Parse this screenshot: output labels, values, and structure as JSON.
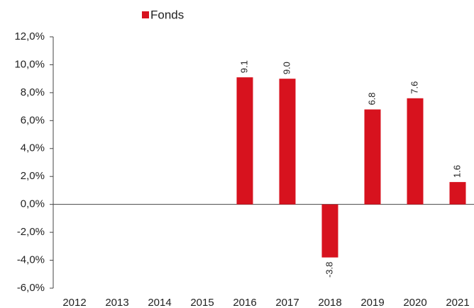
{
  "chart_data": {
    "type": "bar",
    "categories": [
      "2012",
      "2013",
      "2014",
      "2015",
      "2016",
      "2017",
      "2018",
      "2019",
      "2020",
      "2021"
    ],
    "series": [
      {
        "name": "Fonds",
        "color": "#d7121e",
        "values": [
          null,
          null,
          null,
          null,
          9.1,
          9.0,
          -3.8,
          6.8,
          7.6,
          1.6
        ],
        "value_labels": [
          null,
          null,
          null,
          null,
          "9.1",
          "9.0",
          "-3.8",
          "6.8",
          "7.6",
          "1.6"
        ]
      }
    ],
    "ylim": [
      -6,
      12
    ],
    "yticks": [
      {
        "value": -6,
        "label": "-6,0%"
      },
      {
        "value": -4,
        "label": "-4,0%"
      },
      {
        "value": -2,
        "label": "-2,0%"
      },
      {
        "value": 0,
        "label": "0,0%"
      },
      {
        "value": 2,
        "label": "2,0%"
      },
      {
        "value": 4,
        "label": "4,0%"
      },
      {
        "value": 6,
        "label": "6,0%"
      },
      {
        "value": 8,
        "label": "8,0%"
      },
      {
        "value": 10,
        "label": "10,0%"
      },
      {
        "value": 12,
        "label": "12,0%"
      }
    ],
    "grid": false,
    "legend": "top"
  }
}
